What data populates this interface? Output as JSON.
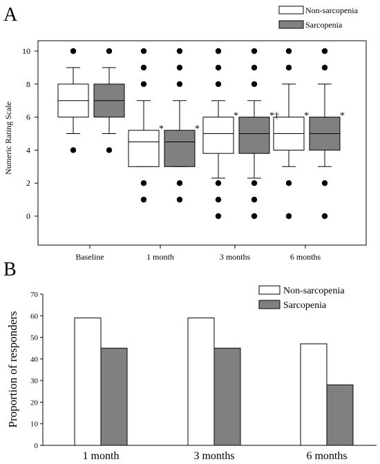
{
  "colors": {
    "non_sarcopenia": "#ffffff",
    "sarcopenia": "#808080",
    "outline": "#000000"
  },
  "chart_data": [
    {
      "panel": "A",
      "type": "box",
      "ylabel": "Numeric Rating Scale",
      "ylim": [
        -2,
        10.7
      ],
      "yticks": [
        0,
        2,
        4,
        6,
        8,
        10
      ],
      "categories": [
        "Baseline",
        "1 month",
        "3 months",
        "6 months"
      ],
      "legend": {
        "position": "top-right",
        "entries": [
          "Non-sarcopenia",
          "Sarcopenia"
        ]
      },
      "series": [
        {
          "name": "Non-sarcopenia",
          "boxes": [
            {
              "whisker_low": 5,
              "q1": 6,
              "median": 7,
              "q3": 8,
              "whisker_high": 9,
              "outliers": [
                4,
                10
              ],
              "mark": ""
            },
            {
              "whisker_low": 3,
              "q1": 3,
              "median": 4.5,
              "q3": 5.2,
              "whisker_high": 7,
              "outliers": [
                1,
                2,
                8,
                9,
                10
              ],
              "mark": "*"
            },
            {
              "whisker_low": 2.3,
              "q1": 3.8,
              "median": 5,
              "q3": 6,
              "whisker_high": 7,
              "outliers": [
                0,
                1,
                2,
                8,
                9,
                10
              ],
              "mark": "*"
            },
            {
              "whisker_low": 3,
              "q1": 4,
              "median": 5,
              "q3": 6,
              "whisker_high": 8,
              "outliers": [
                0,
                2,
                9,
                10
              ],
              "mark": "*"
            }
          ]
        },
        {
          "name": "Sarcopenia",
          "boxes": [
            {
              "whisker_low": 5,
              "q1": 6,
              "median": 7,
              "q3": 8,
              "whisker_high": 9,
              "outliers": [
                4,
                10
              ],
              "mark": ""
            },
            {
              "whisker_low": 3,
              "q1": 3,
              "median": 4.5,
              "q3": 5.2,
              "whisker_high": 7,
              "outliers": [
                1,
                2,
                8,
                9,
                10
              ],
              "mark": "*"
            },
            {
              "whisker_low": 2.3,
              "q1": 3.8,
              "median": 5,
              "q3": 6,
              "whisker_high": 7,
              "outliers": [
                0,
                1,
                2,
                8,
                9,
                10
              ],
              "mark": "*†"
            },
            {
              "whisker_low": 3,
              "q1": 4,
              "median": 5,
              "q3": 6,
              "whisker_high": 8,
              "outliers": [
                0,
                2,
                9,
                10
              ],
              "mark": "*"
            }
          ]
        }
      ]
    },
    {
      "panel": "B",
      "type": "bar",
      "ylabel": "Proportion of responders",
      "ylim": [
        0,
        70
      ],
      "yticks": [
        0,
        10,
        20,
        30,
        40,
        50,
        60,
        70
      ],
      "categories": [
        "1 month",
        "3 months",
        "6 months"
      ],
      "legend": {
        "position": "top-right",
        "entries": [
          "Non-sarcopenia",
          "Sarcopenia"
        ]
      },
      "series": [
        {
          "name": "Non-sarcopenia",
          "values": [
            59,
            59,
            47
          ]
        },
        {
          "name": "Sarcopenia",
          "values": [
            45,
            45,
            28
          ]
        }
      ]
    }
  ]
}
